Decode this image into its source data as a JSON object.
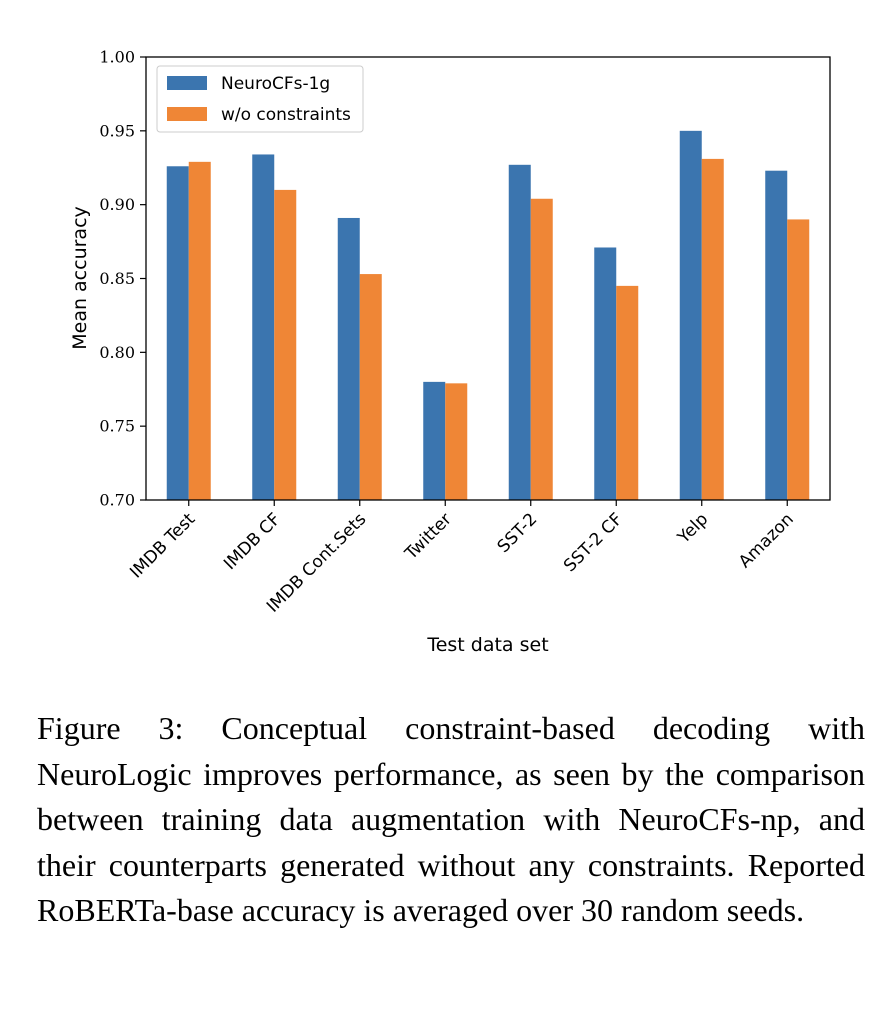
{
  "chart_data": {
    "type": "bar",
    "categories": [
      "IMDB Test",
      "IMDB CF",
      "IMDB Cont.Sets",
      "Twitter",
      "SST-2",
      "SST-2 CF",
      "Yelp",
      "Amazon"
    ],
    "series": [
      {
        "name": "NeuroCFs-1g",
        "color": "#3b75af",
        "values": [
          0.926,
          0.934,
          0.891,
          0.78,
          0.927,
          0.871,
          0.95,
          0.923
        ]
      },
      {
        "name": "w/o constraints",
        "color": "#ef8636",
        "values": [
          0.929,
          0.91,
          0.853,
          0.779,
          0.904,
          0.845,
          0.931,
          0.89
        ]
      }
    ],
    "xlabel": "Test data set",
    "ylabel": "Mean accuracy",
    "ylim": [
      0.7,
      1.0
    ],
    "yticks": [
      "0.70",
      "0.75",
      "0.80",
      "0.85",
      "0.90",
      "0.95",
      "1.00"
    ],
    "legend_position": "top-left",
    "grid": false
  },
  "caption": "Figure 3: Conceptual constraint-based decoding with NeuroLogic improves performance, as seen by the comparison between training data augmentation with NeuroCFs-np, and their counterparts generated without any constraints. Reported RoBERTa-base accuracy is averaged over 30 random seeds."
}
